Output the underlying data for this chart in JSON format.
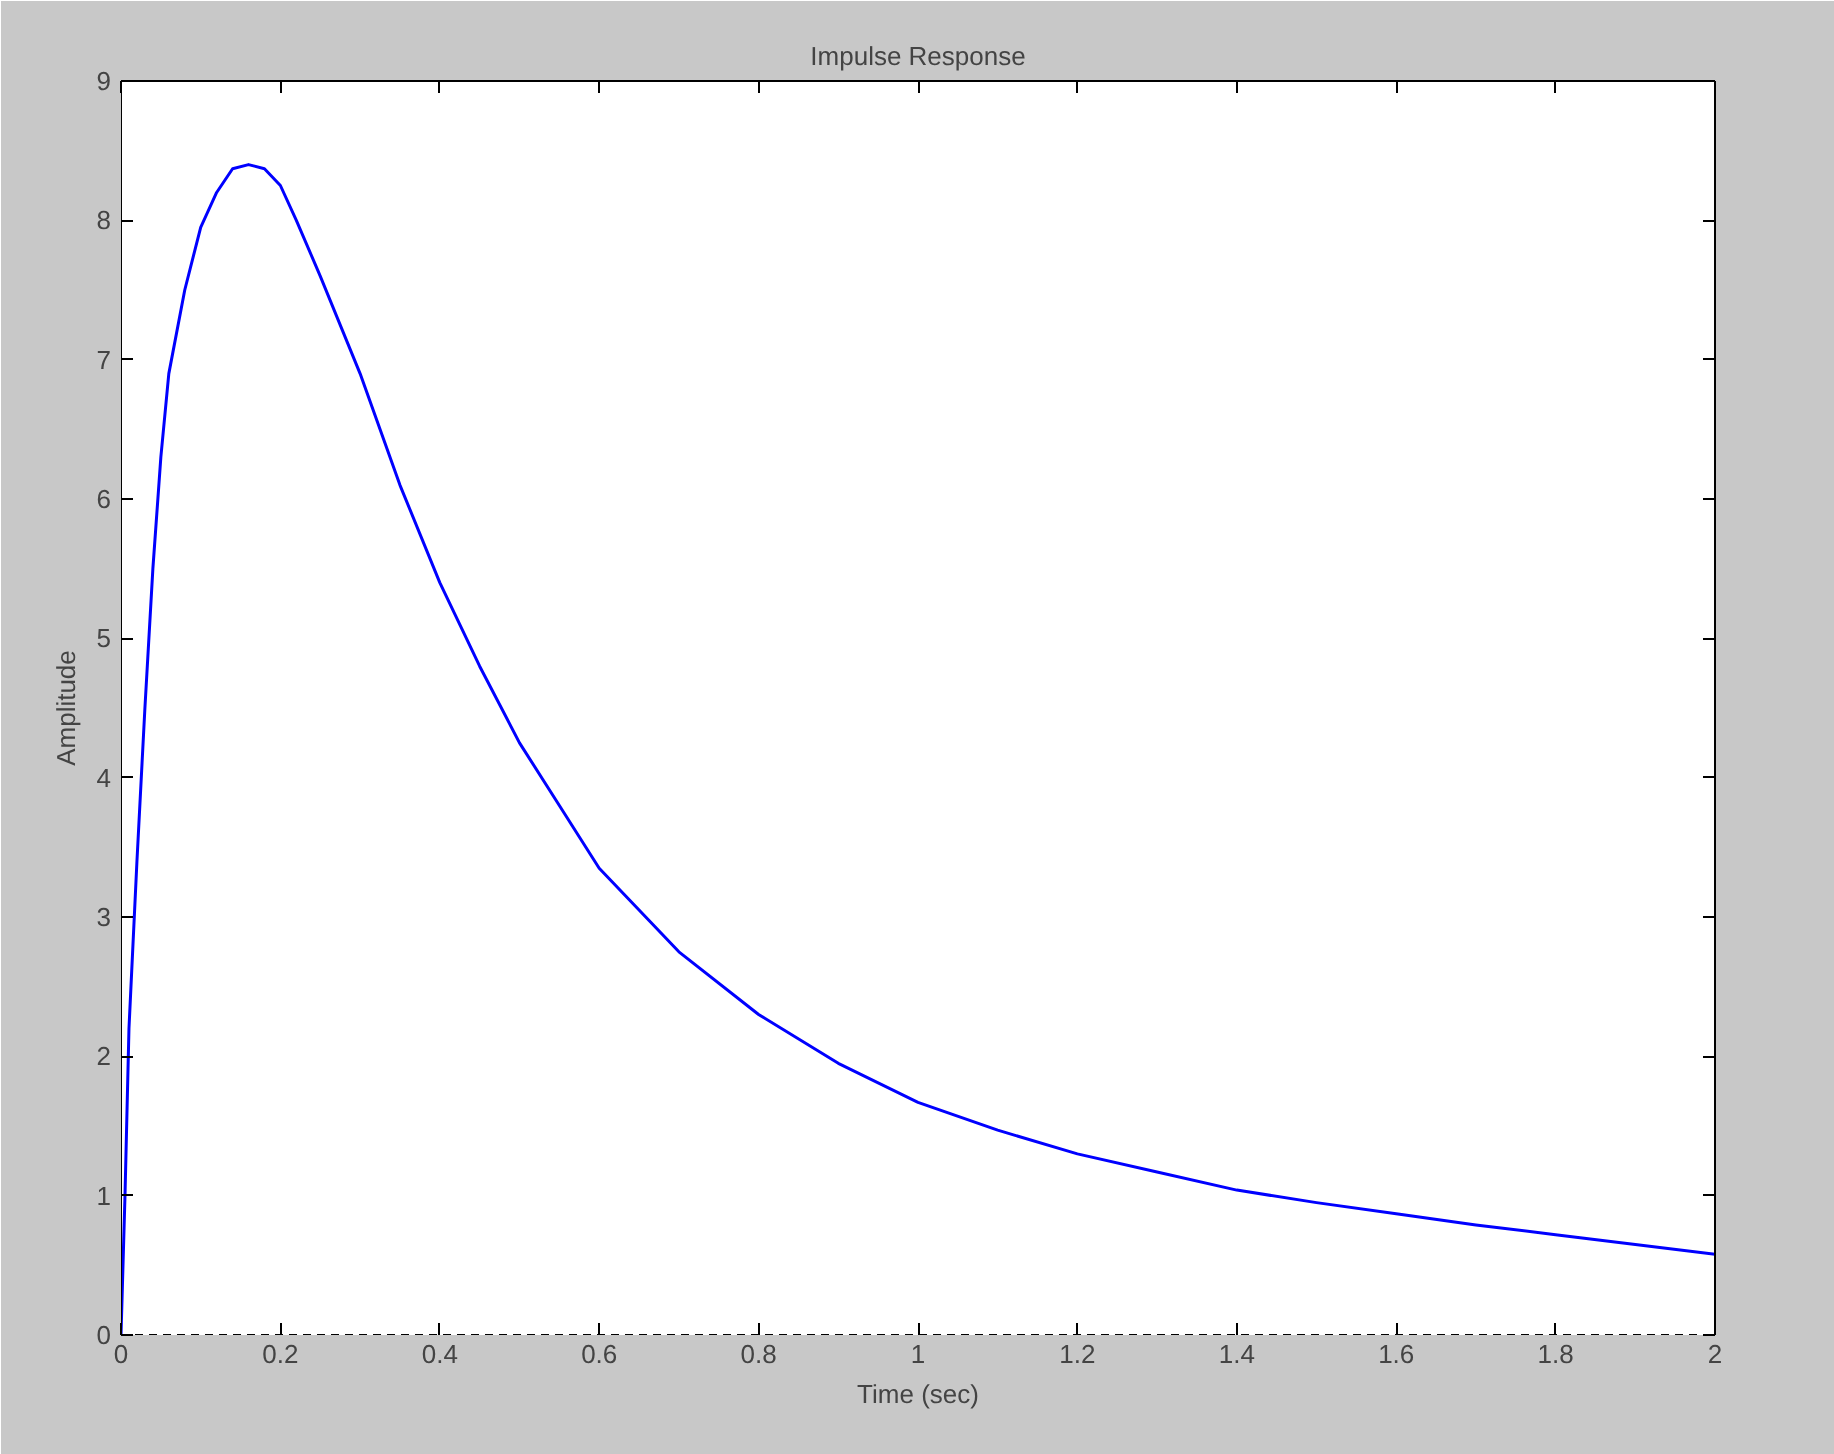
{
  "chart_data": {
    "type": "line",
    "title": "Impulse Response",
    "xlabel": "Time (sec)",
    "ylabel": "Amplitude",
    "x": [
      0,
      0.005,
      0.01,
      0.02,
      0.03,
      0.04,
      0.05,
      0.06,
      0.08,
      0.1,
      0.12,
      0.14,
      0.16,
      0.18,
      0.2,
      0.22,
      0.25,
      0.3,
      0.35,
      0.4,
      0.45,
      0.5,
      0.55,
      0.6,
      0.7,
      0.8,
      0.9,
      1.0,
      1.1,
      1.2,
      1.3,
      1.4,
      1.5,
      1.6,
      1.7,
      1.8,
      1.9,
      2.0
    ],
    "series": [
      {
        "color": "#0000ff",
        "values": [
          0,
          1,
          2.2,
          3.4,
          4.5,
          5.5,
          6.3,
          6.9,
          7.5,
          7.95,
          8.2,
          8.37,
          8.4,
          8.37,
          8.25,
          8.0,
          7.6,
          6.9,
          6.1,
          5.4,
          4.8,
          4.25,
          3.8,
          3.35,
          2.75,
          2.3,
          1.95,
          1.67,
          1.47,
          1.3,
          1.17,
          1.04,
          0.95,
          0.87,
          0.79,
          0.72,
          0.65,
          0.58
        ]
      }
    ],
    "xlim": [
      0,
      2
    ],
    "ylim": [
      0,
      9
    ],
    "xticks": [
      0,
      0.2,
      0.4,
      0.6,
      0.8,
      1,
      1.2,
      1.4,
      1.6,
      1.8,
      2
    ],
    "yticks": [
      0,
      1,
      2,
      3,
      4,
      5,
      6,
      7,
      8,
      9
    ],
    "ref_lines": [
      {
        "axis": "y",
        "value": 0,
        "color": "#000000",
        "line_style": "dashed"
      }
    ],
    "grid": false,
    "line_style": "solid",
    "marker": "none"
  }
}
